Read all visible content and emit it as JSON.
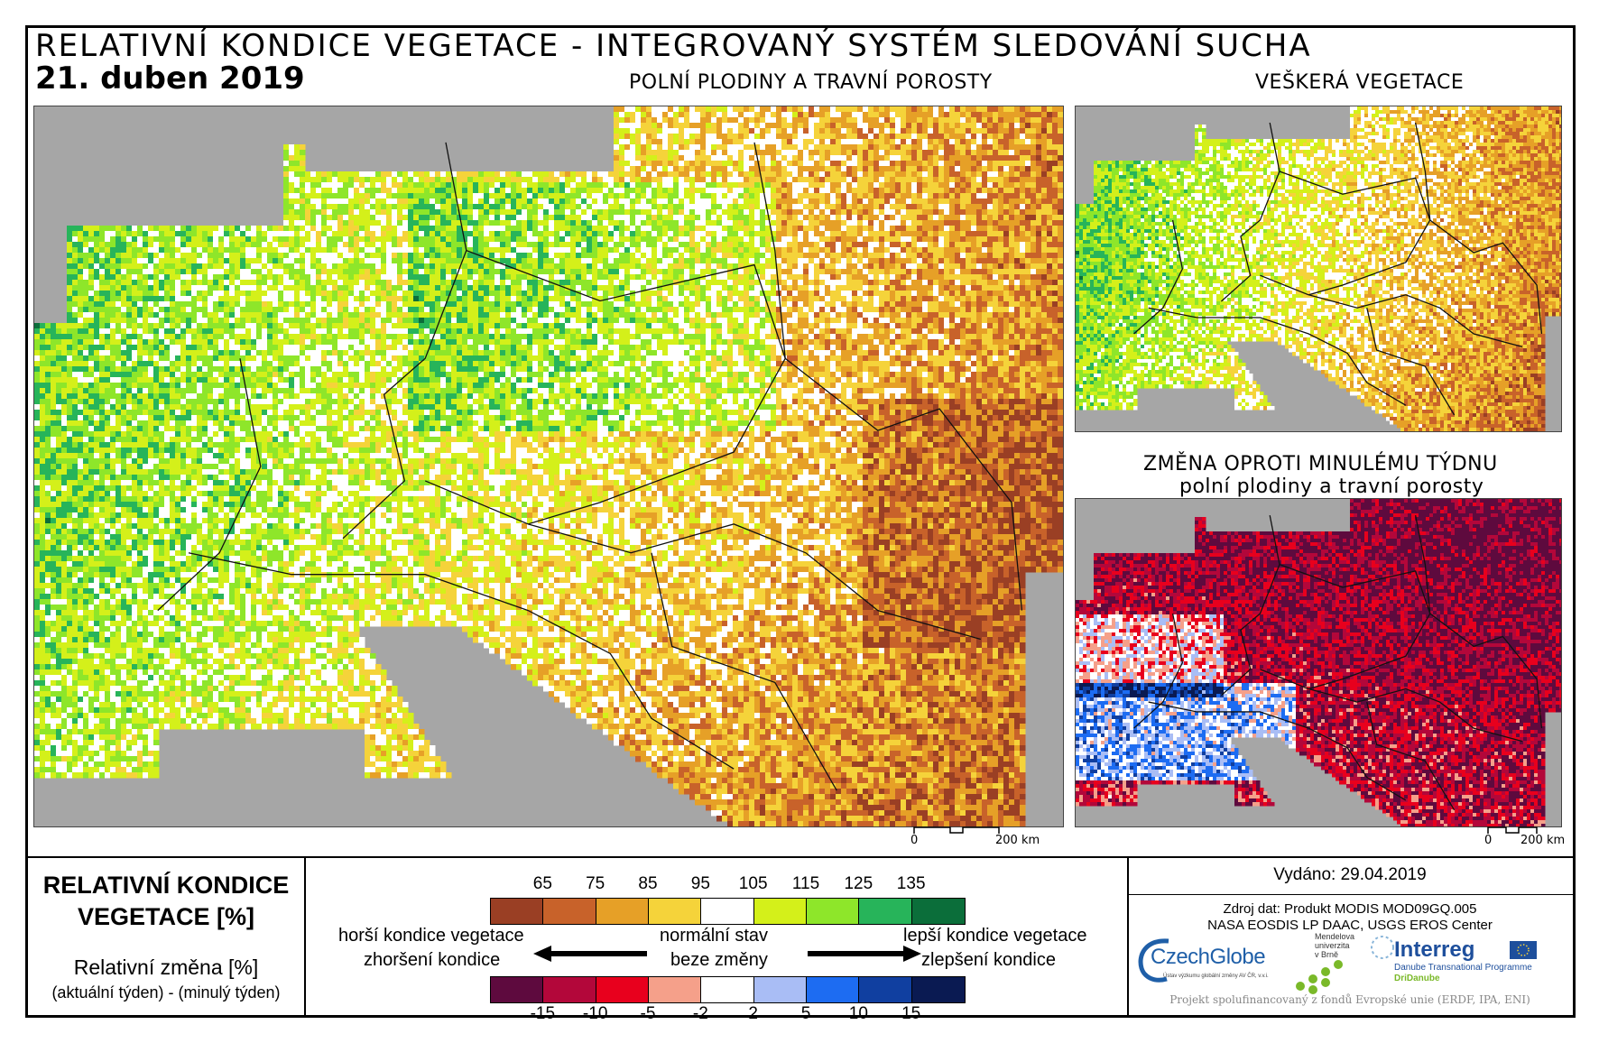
{
  "header": {
    "title": "RELATIVNÍ KONDICE VEGETACE - INTEGROVANÝ SYSTÉM SLEDOVÁNÍ SUCHA",
    "date": "21. duben 2019"
  },
  "maps": {
    "main_title": "POLNÍ PLODINY A TRAVNÍ POROSTY",
    "top_right_title": "VEŠKERÁ VEGETACE",
    "bottom_right_title_1": "ZMĚNA OPROTI MINULÉMU TÝDNU",
    "bottom_right_title_2": "polní plodiny a travní porosty",
    "scale_zero": "0",
    "scale_label": "200 km"
  },
  "legend": {
    "title_1": "RELATIVNÍ KONDICE",
    "title_2": "VEGETACE [%]",
    "change_1": "Relativní změna [%]",
    "change_2": "(aktuální týden) - (minulý týden)",
    "worse": "horší kondice vegetace",
    "normal": "normální stav",
    "better": "lepší kondice vegetace",
    "worsening": "zhoršení kondice",
    "nochange": "beze změny",
    "improving": "zlepšení kondice",
    "condition_ticks": [
      "65",
      "75",
      "85",
      "95",
      "105",
      "115",
      "125",
      "135"
    ],
    "condition_colors": [
      "#9a3f24",
      "#c8622a",
      "#e6a027",
      "#f5d33a",
      "#ffffff",
      "#d4f01a",
      "#8ee62a",
      "#27b45a",
      "#0b6e3a"
    ],
    "change_ticks": [
      "-15",
      "-10",
      "-5",
      "-2",
      "2",
      "5",
      "10",
      "15"
    ],
    "change_colors": [
      "#5e0a3e",
      "#b3073a",
      "#e8001d",
      "#f5a08a",
      "#ffffff",
      "#a9bdf5",
      "#1d6cf2",
      "#103fa0",
      "#0a1a52"
    ]
  },
  "info": {
    "issued": "Vydáno: 29.04.2019",
    "source_1": "Zdroj dat: Produkt MODIS MOD09GQ.005",
    "source_2": "NASA EOSDIS LP DAAC, USGS EROS Center",
    "footer": "Projekt spolufinancovaný z fondů Evropské unie (ERDF, IPA, ENI)",
    "logo_czechglobe": "CzechGlobe",
    "logo_czechglobe_sub": "Ústav výzkumu globální změny AV ČR, v.v.i.",
    "logo_mendel_1": "Mendelova",
    "logo_mendel_2": "univerzita",
    "logo_mendel_3": "v Brně",
    "logo_interreg": "Interreg",
    "logo_interreg_sub": "Danube Transnational Programme",
    "logo_dridanube": "DriDanube"
  }
}
